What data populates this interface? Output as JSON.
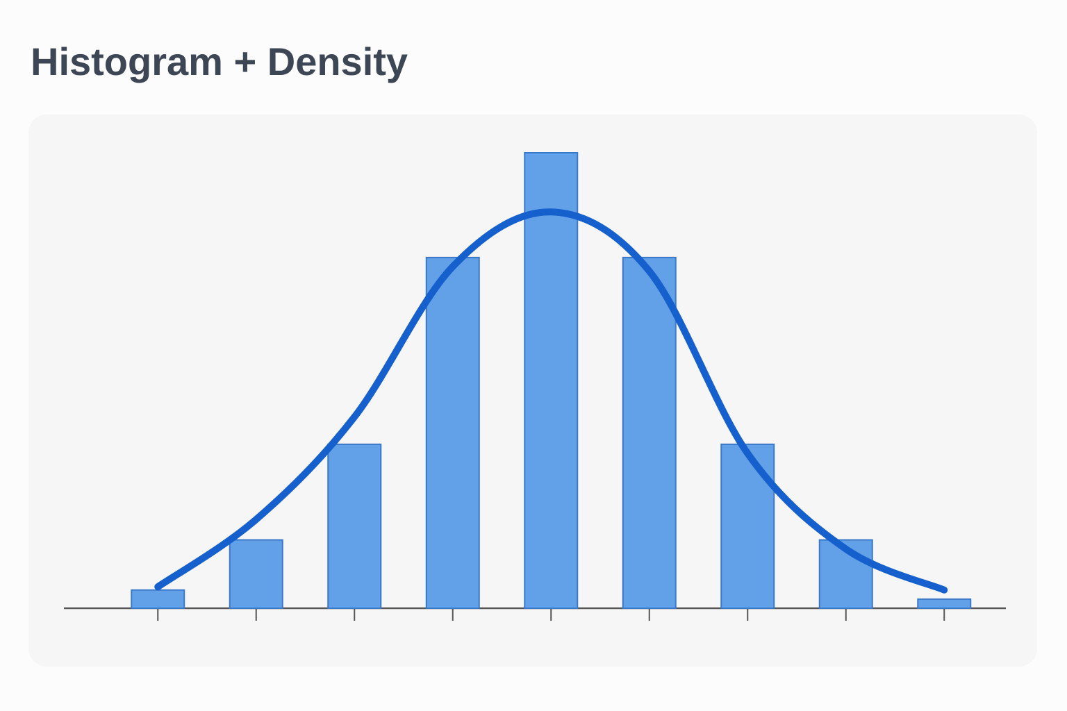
{
  "chart_data": {
    "type": "bar",
    "title": "Histogram + Density",
    "categories": [
      null,
      null,
      null,
      null,
      null,
      null,
      null,
      null,
      null
    ],
    "series": [
      {
        "type": "bar",
        "color": "#62a0e8",
        "values": [
          4,
          15,
          36,
          77,
          100,
          77,
          36,
          15,
          2
        ]
      },
      {
        "type": "line",
        "color": "#1560cc",
        "values": [
          4.7,
          19.5,
          42,
          75,
          87,
          74,
          34,
          13,
          4
        ]
      }
    ],
    "ylim": [
      0,
      100
    ]
  }
}
